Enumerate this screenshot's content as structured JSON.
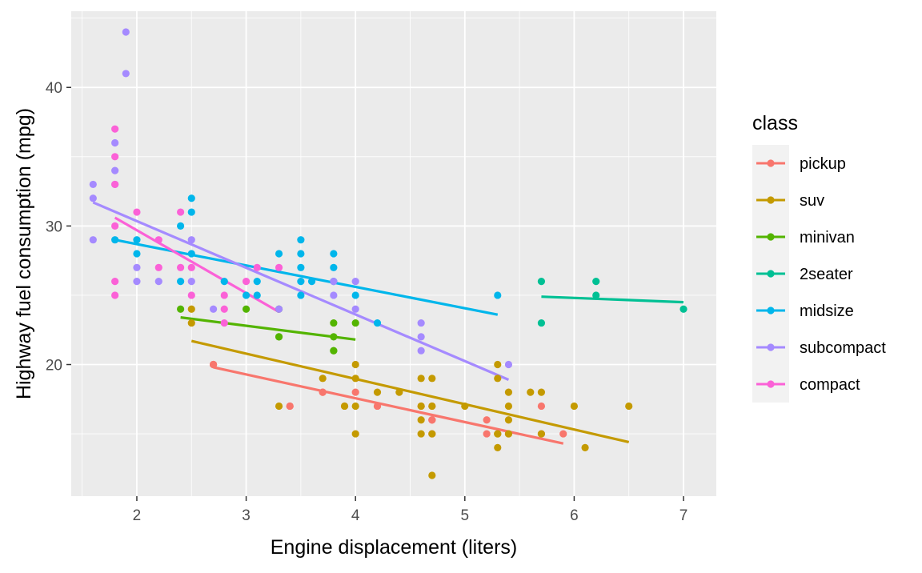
{
  "chart_data": {
    "type": "scatter",
    "title": "",
    "xlabel": "Engine displacement (liters)",
    "ylabel": "Highway fuel consumption (mpg)",
    "xlim": [
      1.4,
      7.3
    ],
    "ylim": [
      10.5,
      45.5
    ],
    "xticks": [
      2,
      3,
      4,
      5,
      6,
      7
    ],
    "yticks": [
      20,
      30,
      40
    ],
    "grid": true,
    "legend": {
      "title": "class",
      "position": "right"
    },
    "series": [
      {
        "name": "pickup",
        "color": "#F8766D",
        "points": [
          [
            2.7,
            20
          ],
          [
            2.7,
            20
          ],
          [
            2.7,
            20
          ],
          [
            3.4,
            17
          ],
          [
            3.4,
            17
          ],
          [
            3.7,
            18
          ],
          [
            3.7,
            18
          ],
          [
            3.9,
            17
          ],
          [
            4.0,
            18
          ],
          [
            4.2,
            17
          ],
          [
            4.2,
            17
          ],
          [
            4.7,
            16
          ],
          [
            4.7,
            16
          ],
          [
            4.6,
            17
          ],
          [
            4.7,
            16
          ],
          [
            4.7,
            17
          ],
          [
            5.2,
            15
          ],
          [
            5.2,
            16
          ],
          [
            5.7,
            15
          ],
          [
            5.7,
            17
          ],
          [
            5.9,
            15
          ],
          [
            5.4,
            15
          ],
          [
            4.7,
            15
          ]
        ],
        "trend": [
          [
            2.7,
            19.8
          ],
          [
            5.9,
            14.3
          ]
        ]
      },
      {
        "name": "suv",
        "color": "#C49A00",
        "points": [
          [
            2.5,
            23
          ],
          [
            2.5,
            24
          ],
          [
            3.3,
            17
          ],
          [
            3.7,
            19
          ],
          [
            3.9,
            17
          ],
          [
            4.0,
            19
          ],
          [
            4.0,
            17
          ],
          [
            4.0,
            15
          ],
          [
            4.2,
            18
          ],
          [
            4.4,
            18
          ],
          [
            4.6,
            19
          ],
          [
            4.6,
            17
          ],
          [
            4.6,
            16
          ],
          [
            4.6,
            15
          ],
          [
            4.7,
            19
          ],
          [
            4.7,
            15
          ],
          [
            4.7,
            17
          ],
          [
            4.7,
            12
          ],
          [
            5.0,
            17
          ],
          [
            5.3,
            20
          ],
          [
            5.3,
            19
          ],
          [
            5.3,
            15
          ],
          [
            5.3,
            14
          ],
          [
            5.3,
            15
          ],
          [
            5.4,
            18
          ],
          [
            5.4,
            17
          ],
          [
            5.4,
            16
          ],
          [
            5.4,
            15
          ],
          [
            5.6,
            18
          ],
          [
            5.7,
            18
          ],
          [
            5.7,
            15
          ],
          [
            6.0,
            17
          ],
          [
            6.1,
            14
          ],
          [
            6.5,
            17
          ],
          [
            4.0,
            20
          ]
        ],
        "trend": [
          [
            2.5,
            21.7
          ],
          [
            6.5,
            14.4
          ]
        ]
      },
      {
        "name": "minivan",
        "color": "#53B400",
        "points": [
          [
            2.4,
            24
          ],
          [
            3.0,
            24
          ],
          [
            3.3,
            22
          ],
          [
            3.3,
            24
          ],
          [
            3.8,
            22
          ],
          [
            3.8,
            21
          ],
          [
            3.8,
            23
          ],
          [
            4.0,
            23
          ],
          [
            3.3,
            22
          ],
          [
            3.8,
            21
          ]
        ],
        "trend": [
          [
            2.4,
            23.4
          ],
          [
            4.0,
            21.8
          ]
        ]
      },
      {
        "name": "2seater",
        "color": "#00C094",
        "points": [
          [
            5.7,
            26
          ],
          [
            5.7,
            23
          ],
          [
            6.2,
            26
          ],
          [
            6.2,
            25
          ],
          [
            7.0,
            24
          ]
        ],
        "trend": [
          [
            5.7,
            24.9
          ],
          [
            7.0,
            24.5
          ]
        ]
      },
      {
        "name": "midsize",
        "color": "#00B6EB",
        "points": [
          [
            1.8,
            29
          ],
          [
            2.0,
            29
          ],
          [
            2.0,
            28
          ],
          [
            2.4,
            30
          ],
          [
            2.4,
            26
          ],
          [
            2.5,
            32
          ],
          [
            2.5,
            31
          ],
          [
            2.5,
            28
          ],
          [
            2.8,
            26
          ],
          [
            3.0,
            25
          ],
          [
            3.1,
            26
          ],
          [
            3.1,
            25
          ],
          [
            3.3,
            28
          ],
          [
            3.5,
            29
          ],
          [
            3.5,
            28
          ],
          [
            3.5,
            27
          ],
          [
            3.5,
            26
          ],
          [
            3.5,
            25
          ],
          [
            3.6,
            26
          ],
          [
            3.8,
            28
          ],
          [
            3.8,
            27
          ],
          [
            3.8,
            26
          ],
          [
            4.0,
            25
          ],
          [
            4.2,
            23
          ],
          [
            5.3,
            25
          ]
        ],
        "trend": [
          [
            1.8,
            29.0
          ],
          [
            5.3,
            23.6
          ]
        ]
      },
      {
        "name": "subcompact",
        "color": "#A58AFF",
        "points": [
          [
            1.6,
            33
          ],
          [
            1.6,
            32
          ],
          [
            1.6,
            29
          ],
          [
            1.8,
            36
          ],
          [
            1.8,
            34
          ],
          [
            1.8,
            33
          ],
          [
            1.9,
            44
          ],
          [
            1.9,
            41
          ],
          [
            2.0,
            27
          ],
          [
            2.0,
            26
          ],
          [
            2.2,
            26
          ],
          [
            2.5,
            29
          ],
          [
            2.5,
            26
          ],
          [
            2.7,
            24
          ],
          [
            3.3,
            24
          ],
          [
            3.8,
            25
          ],
          [
            3.8,
            26
          ],
          [
            4.0,
            26
          ],
          [
            4.0,
            24
          ],
          [
            4.6,
            23
          ],
          [
            4.6,
            22
          ],
          [
            4.6,
            21
          ],
          [
            5.4,
            20
          ]
        ],
        "trend": [
          [
            1.6,
            31.7
          ],
          [
            5.4,
            18.9
          ]
        ]
      },
      {
        "name": "compact",
        "color": "#FB61D7",
        "points": [
          [
            1.8,
            30
          ],
          [
            1.8,
            26
          ],
          [
            1.8,
            25
          ],
          [
            1.8,
            33
          ],
          [
            1.8,
            35
          ],
          [
            1.8,
            37
          ],
          [
            2.0,
            31
          ],
          [
            2.2,
            29
          ],
          [
            2.2,
            27
          ],
          [
            2.4,
            31
          ],
          [
            2.4,
            27
          ],
          [
            2.5,
            27
          ],
          [
            2.5,
            25
          ],
          [
            2.8,
            25
          ],
          [
            2.8,
            24
          ],
          [
            2.8,
            23
          ],
          [
            3.0,
            26
          ],
          [
            3.1,
            27
          ],
          [
            3.3,
            27
          ]
        ],
        "trend": [
          [
            1.8,
            30.6
          ],
          [
            3.3,
            23.8
          ]
        ]
      }
    ]
  }
}
